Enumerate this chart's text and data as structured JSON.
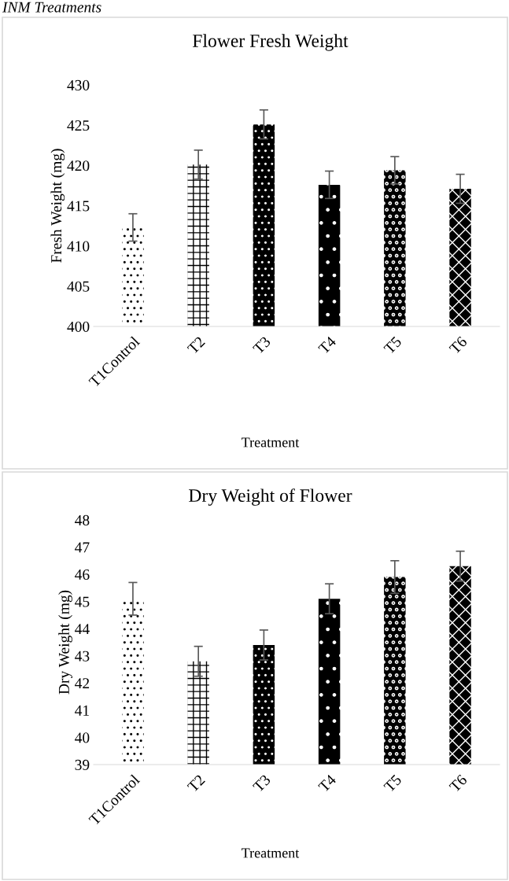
{
  "chart_data": [
    {
      "type": "bar",
      "title": "Flower Fresh Weight",
      "xlabel": "Treatment",
      "ylabel": "Fresh Weight (mg)",
      "annotations": [
        "INM Treatments"
      ],
      "categories": [
        "T1Control",
        "T2",
        "T3",
        "T4",
        "T5",
        "T6"
      ],
      "values": [
        412.3,
        420.1,
        425.1,
        417.6,
        419.4,
        417.1
      ],
      "errors": [
        1.7,
        1.8,
        1.8,
        1.7,
        1.7,
        1.8
      ],
      "colors": [
        "#ffffff",
        "#ffffff",
        "#000000",
        "#000000",
        "#000000",
        "#000000"
      ],
      "ylim": [
        400,
        430
      ],
      "yticks": [
        400,
        405,
        410,
        415,
        420,
        425,
        430
      ],
      "grid": false,
      "legend": false
    },
    {
      "type": "bar",
      "title": "Dry Weight of Flower",
      "xlabel": "Treatment",
      "ylabel": "Dry Weight (mg)",
      "categories": [
        "T1Control",
        "T2",
        "T3",
        "T4",
        "T5",
        "T6"
      ],
      "values": [
        45.1,
        42.8,
        43.4,
        45.1,
        45.9,
        46.3
      ],
      "errors": [
        0.6,
        0.55,
        0.55,
        0.55,
        0.6,
        0.55
      ],
      "colors": [
        "#ffffff",
        "#ffffff",
        "#000000",
        "#000000",
        "#000000",
        "#000000"
      ],
      "ylim": [
        39,
        48
      ],
      "yticks": [
        39,
        40,
        41,
        42,
        43,
        44,
        45,
        46,
        47,
        48
      ],
      "grid": false,
      "legend": false
    }
  ]
}
